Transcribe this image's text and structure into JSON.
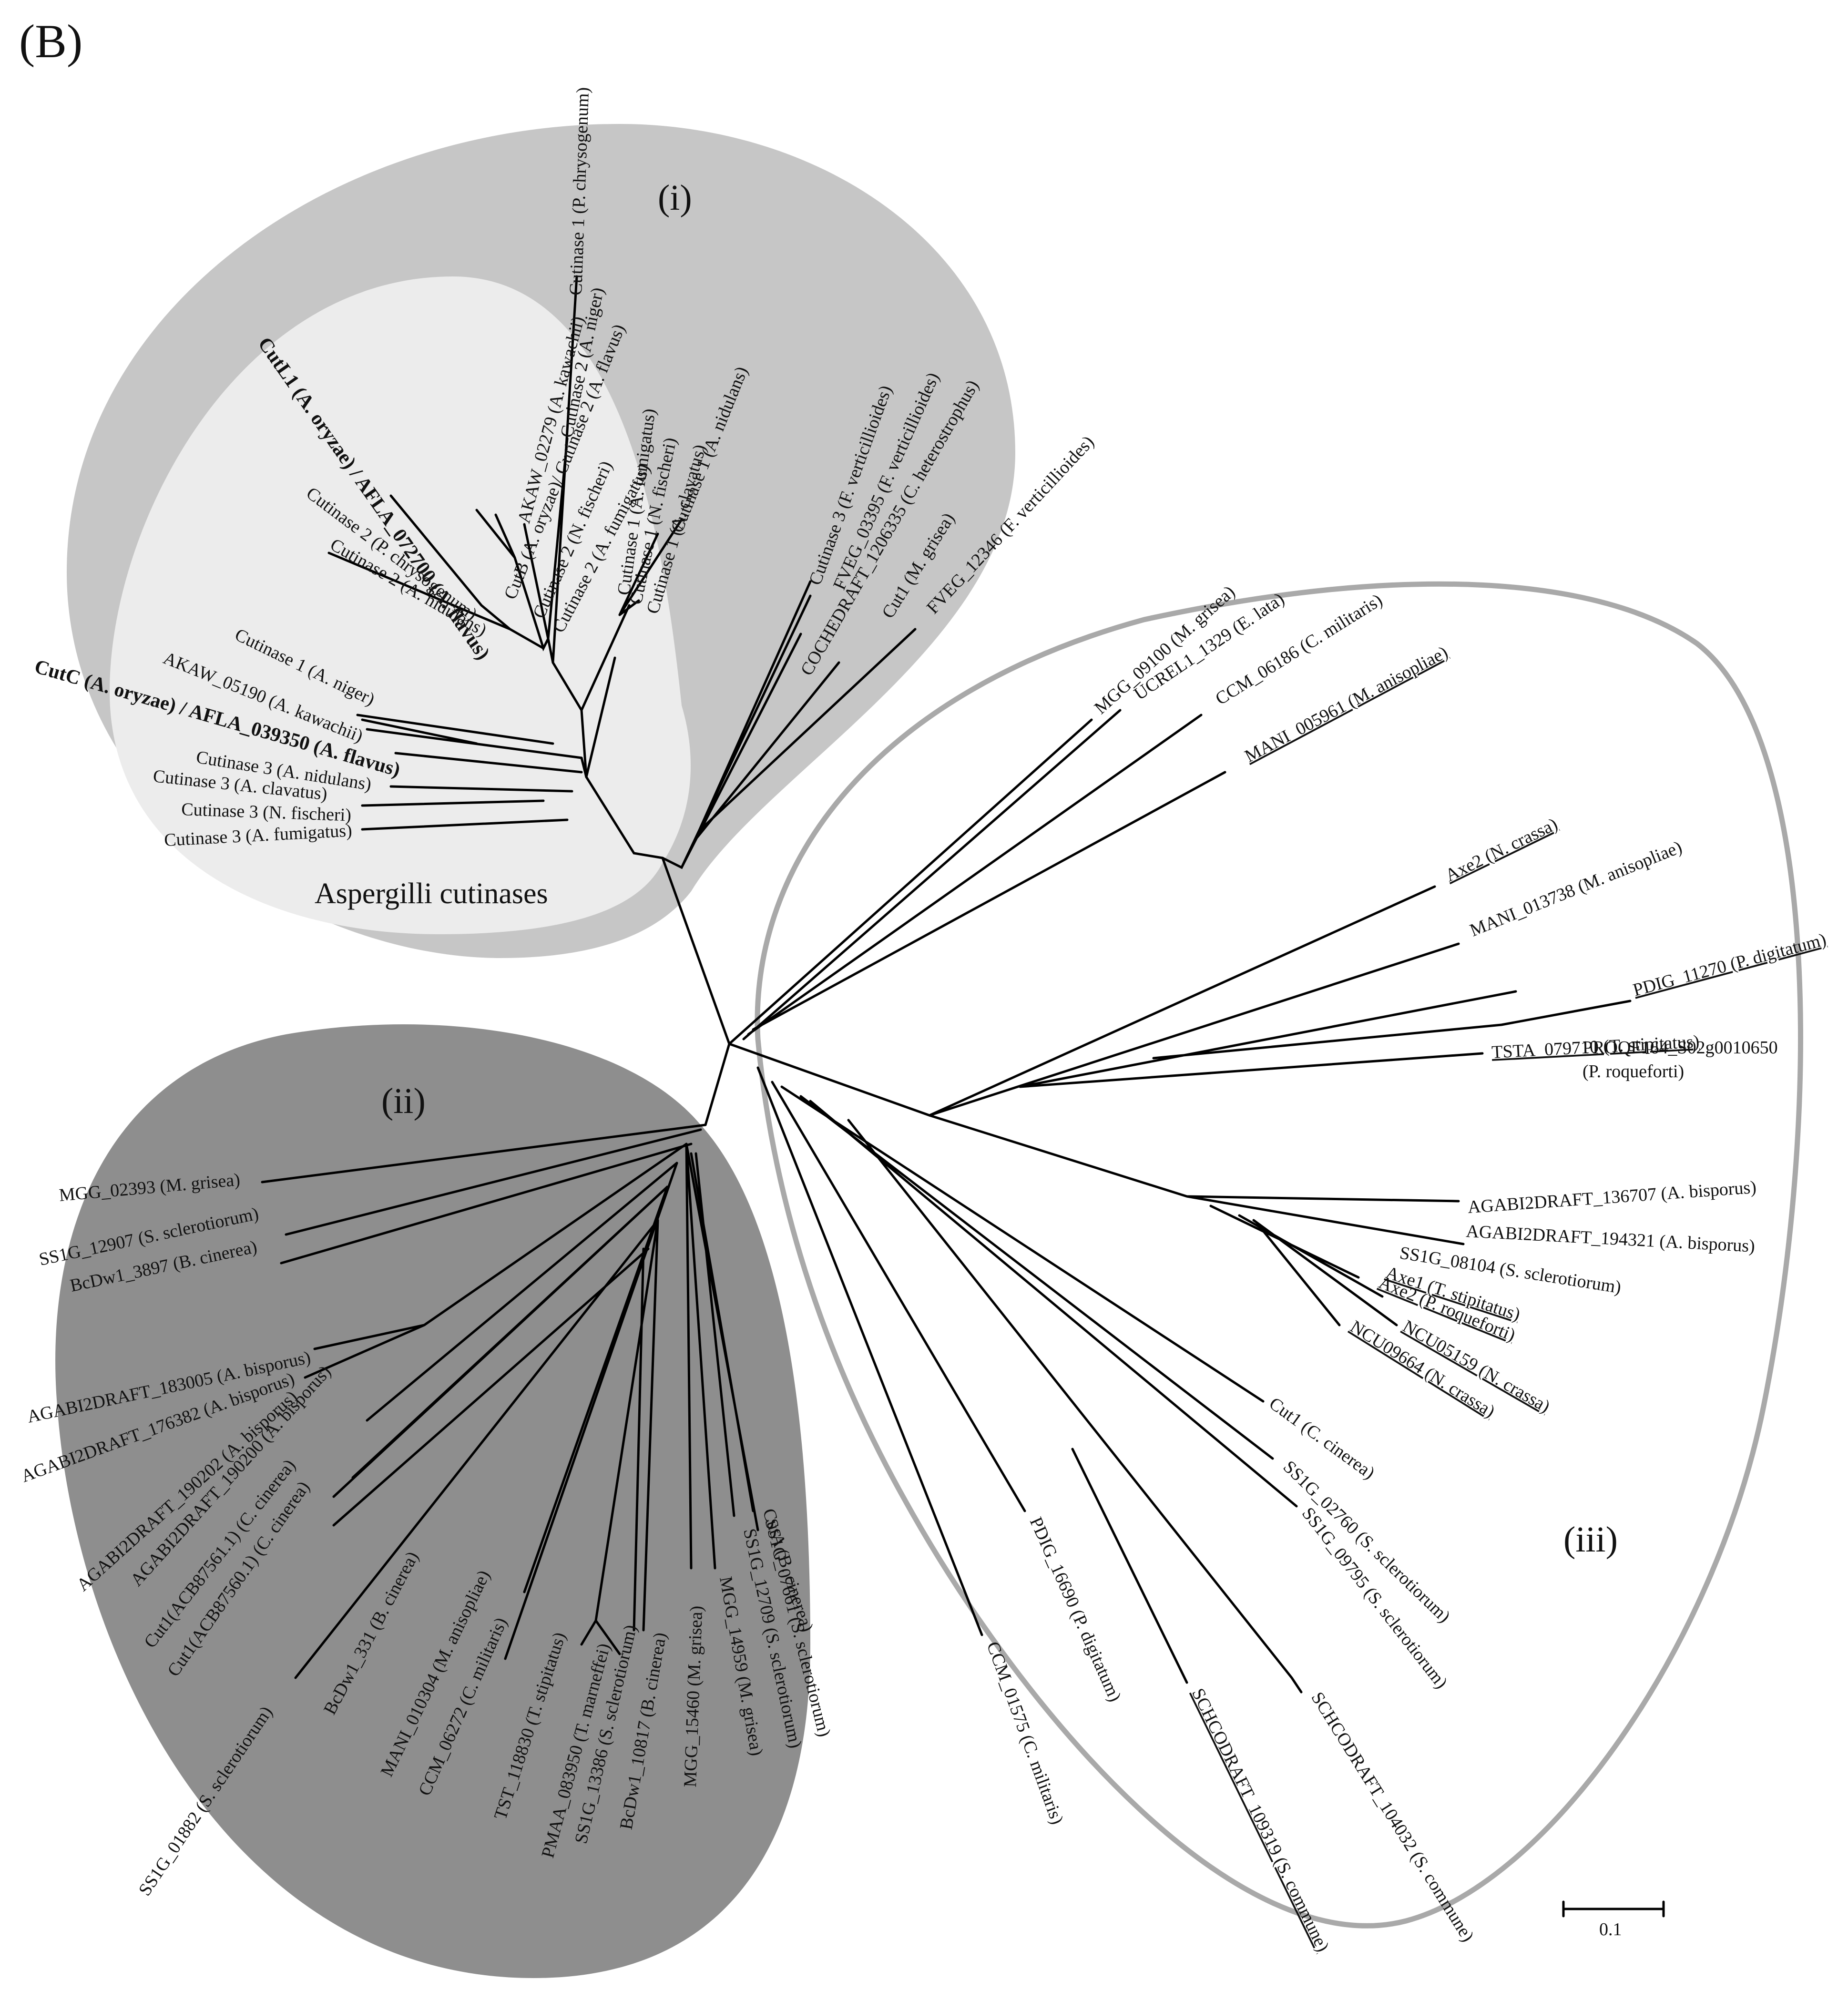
{
  "panel_label": "(B)",
  "groups": [
    {
      "id": "i",
      "label": "(i)",
      "color": "#c6c6c6"
    },
    {
      "id": "aspergilli",
      "label": "Aspergilli cutinases",
      "color": "#ececec"
    },
    {
      "id": "ii",
      "label": "(ii)",
      "color": "#8e8e8e"
    },
    {
      "id": "iii",
      "label": "(iii)",
      "color": "#a9a9a9"
    }
  ],
  "scale_bar": {
    "label": "0.1"
  },
  "leaves": [
    {
      "id": "cut1-pchr",
      "text": "Cutinase 1 (P. chrysogenum)",
      "group": "aspergilli"
    },
    {
      "id": "cut2-aniger",
      "text": "Cutinase 2 (A. niger)",
      "group": "aspergilli"
    },
    {
      "id": "akaw-02279",
      "text": "AKAW_02279 (A. kawachii)",
      "group": "aspergilli"
    },
    {
      "id": "cutb",
      "text": "CutB (A. oryzae)/ Cutinase 2 (A. flavus)",
      "group": "aspergilli"
    },
    {
      "id": "cut2-nfis",
      "text": "Cutinase 2 (N. fischeri)",
      "group": "aspergilli"
    },
    {
      "id": "cut2-afum",
      "text": "Cutinase 2 (A. fumigatus)",
      "group": "aspergilli"
    },
    {
      "id": "cutl1",
      "text": "CutL1 (A. oryzae) / AFLA_072700 (A. flavus)",
      "group": "aspergilli"
    },
    {
      "id": "cut2-pchr",
      "text": "Cutinase 2 (P. chrysogenum)",
      "group": "aspergilli"
    },
    {
      "id": "cut2-anid",
      "text": "Cutinase 2 (A. nidulans)",
      "group": "aspergilli"
    },
    {
      "id": "cut1-afum",
      "text": "Cutinase 1 (A. fumigatus)",
      "group": "aspergilli"
    },
    {
      "id": "cut1-nfis",
      "text": "Cutinase 1 (N. fischeri)",
      "group": "aspergilli"
    },
    {
      "id": "cut1-acla",
      "text": "Cutinase 1 (A. clavatus)",
      "group": "aspergilli"
    },
    {
      "id": "cut1-anid",
      "text": "Cutinase 1 (A. nidulans)",
      "group": "aspergilli"
    },
    {
      "id": "cut1-aniger",
      "text": "Cutinase 1 (A. niger)",
      "group": "aspergilli"
    },
    {
      "id": "akaw-05190",
      "text": "AKAW_05190 (A. kawachii)",
      "group": "aspergilli"
    },
    {
      "id": "cutc",
      "text": "CutC (A. oryzae) / AFLA_039350 (A. flavus)",
      "group": "aspergilli"
    },
    {
      "id": "cut3-anid",
      "text": "Cutinase 3 (A. nidulans)",
      "group": "aspergilli"
    },
    {
      "id": "cut3-acla",
      "text": "Cutinase 3 (A. clavatus)",
      "group": "aspergilli"
    },
    {
      "id": "cut3-nfis",
      "text": "Cutinase 3 (N. fischeri)",
      "group": "aspergilli"
    },
    {
      "id": "cut3-afum",
      "text": "Cutinase 3 (A. fumigatus)",
      "group": "aspergilli"
    },
    {
      "id": "cut3-fver",
      "text": "Cutinase 3 (F. verticillioides)",
      "group": "i"
    },
    {
      "id": "fveg-03395",
      "text": "FVEG_03395 (F. verticillioides)",
      "group": "i"
    },
    {
      "id": "coch",
      "text": "COCHEDRAFT_1206335 (C. heterostrophus)",
      "group": "i"
    },
    {
      "id": "cut1-mgri",
      "text": "Cut1 (M. grisea)",
      "group": "i"
    },
    {
      "id": "fveg-12346",
      "text": "FVEG_12346 (F. verticillioides)",
      "group": "i"
    },
    {
      "id": "mgg-09100",
      "text": "MGG_09100 (M. grisea)",
      "group": "iii"
    },
    {
      "id": "ucrel1",
      "text": "UCREL1_1329 (E. lata)",
      "group": "iii"
    },
    {
      "id": "ccm-06186",
      "text": "CCM_06186 (C. militaris)",
      "group": "iii"
    },
    {
      "id": "mani-005961",
      "text": "MANI_005961 (M. anisopliae)",
      "group": "iii"
    },
    {
      "id": "axe2-ncr",
      "text": "Axe2 (N. crassa)",
      "group": "iii"
    },
    {
      "id": "mani-013738",
      "text": "MANI_013738 (M. anisopliae)",
      "group": "iii"
    },
    {
      "id": "pdig-11270",
      "text": "PDIG_11270 (P. digitatum)",
      "group": "iii"
    },
    {
      "id": "proqf",
      "text": "PROQF164_S02g0010650",
      "group": "iii"
    },
    {
      "id": "proqf-sp",
      "text": "(P. roqueforti)",
      "group": "iii"
    },
    {
      "id": "tsta",
      "text": "TSTA_079710 (T. stipitatus)",
      "group": "iii"
    },
    {
      "id": "agab-136707",
      "text": "AGABI2DRAFT_136707 (A. bisporus)",
      "group": "iii"
    },
    {
      "id": "agab-194321",
      "text": "AGABI2DRAFT_194321 (A. bisporus)",
      "group": "iii"
    },
    {
      "id": "ss1g-08104",
      "text": "SS1G_08104 (S. sclerotiorum)",
      "group": "iii"
    },
    {
      "id": "axe1-tst",
      "text": "Axe1 (T. stipitatus)",
      "group": "iii"
    },
    {
      "id": "axe2-proq",
      "text": "Axe2 (P. roqueforti)",
      "group": "iii"
    },
    {
      "id": "ncu05159",
      "text": "NCU05159 (N. crassa)",
      "group": "iii"
    },
    {
      "id": "ncu09664",
      "text": "NCU09664 (N. crassa)",
      "group": "iii"
    },
    {
      "id": "cut1-ccin",
      "text": "Cut1 (C. cinerea)",
      "group": "iii"
    },
    {
      "id": "ss1g-02760",
      "text": "SS1G_02760 (S. sclerotiorum)",
      "group": "iii"
    },
    {
      "id": "ss1g-09795",
      "text": "SS1G_09795 (S. sclerotiorum)",
      "group": "iii"
    },
    {
      "id": "schco-104032",
      "text": "SCHCODRAFT_104032 (S. commune)",
      "group": "iii"
    },
    {
      "id": "schco-109319",
      "text": "SCHCODRAFT_109319 (S. commune)",
      "group": "iii"
    },
    {
      "id": "pdig-16690",
      "text": "PDIG_16690 (P. digitatum)",
      "group": "iii"
    },
    {
      "id": "ccm-01575",
      "text": "CCM_01575 (C. militaris)",
      "group": "iii"
    },
    {
      "id": "mgg-02393",
      "text": "MGG_02393 (M. grisea)",
      "group": "ii"
    },
    {
      "id": "ss1g-12907",
      "text": "SS1G_12907 (S. sclerotiorum)",
      "group": "ii"
    },
    {
      "id": "bcdw1-3897",
      "text": "BcDw1_3897 (B. cinerea)",
      "group": "ii"
    },
    {
      "id": "agab-183005",
      "text": "AGABI2DRAFT_183005 (A. bisporus)",
      "group": "ii"
    },
    {
      "id": "agab-176382",
      "text": "AGABI2DRAFT_176382 (A. bisporus)",
      "group": "ii"
    },
    {
      "id": "agab-190202",
      "text": "AGABI2DRAFT_190202 (A. bisporus)",
      "group": "ii"
    },
    {
      "id": "agab-190200",
      "text": "AGABI2DRAFT_190200 (A. bisporus)",
      "group": "ii"
    },
    {
      "id": "cut1-acb87561",
      "text": "Cut1(ACB87561.1) (C. cinerea)",
      "group": "ii"
    },
    {
      "id": "cut1-acb87560",
      "text": "Cut1(ACB87560.1) (C. cinerea)",
      "group": "ii"
    },
    {
      "id": "ss1g-01882",
      "text": "SS1G_01882 (S. sclerotiorum)",
      "group": "ii"
    },
    {
      "id": "bcdw1-331",
      "text": "BcDw1_331 (B. cinerea)",
      "group": "ii"
    },
    {
      "id": "mani-010304",
      "text": "MANI_010304 (M. anisopliae)",
      "group": "ii"
    },
    {
      "id": "ccm-06272",
      "text": "CCM_06272 (C. militaris)",
      "group": "ii"
    },
    {
      "id": "tst-118830",
      "text": "TST_118830 (T. stipitatus)",
      "group": "ii"
    },
    {
      "id": "pmaa-083950",
      "text": "PMAA_083950 (T. marneffei)",
      "group": "ii"
    },
    {
      "id": "ss1g-13386",
      "text": "SS1G_13386 (S. sclerotiorum)",
      "group": "ii"
    },
    {
      "id": "bcdw1-10817",
      "text": "BcDw1_10817 (B. cinerea)",
      "group": "ii"
    },
    {
      "id": "mgg-15460",
      "text": "MGG_15460 (M. grisea)",
      "group": "ii"
    },
    {
      "id": "mgg-14959",
      "text": "MGG_14959 (M. grisea)",
      "group": "ii"
    },
    {
      "id": "ss1g-12709",
      "text": "SS1G_12709 (S. sclerotiorum)",
      "group": "ii"
    },
    {
      "id": "ss1g-07661",
      "text": "SS1G_07661 (S. sclerotiorum)",
      "group": "ii"
    },
    {
      "id": "cuta-bcin",
      "text": "CutA (B. cinerea)",
      "group": "ii"
    }
  ]
}
